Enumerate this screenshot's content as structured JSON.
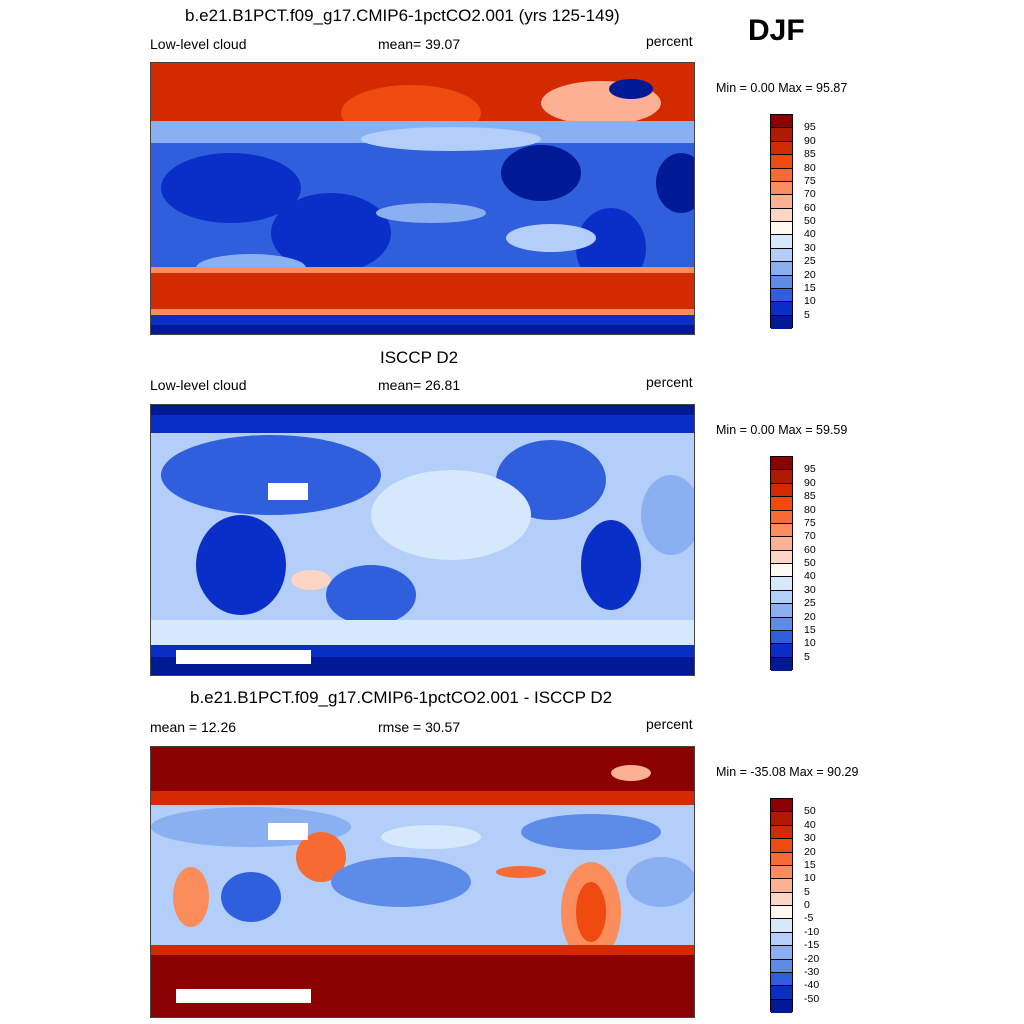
{
  "season": "DJF",
  "panels": [
    {
      "title": "b.e21.B1PCT.f09_g17.CMIP6-1pctCO2.001 (yrs 125-149)",
      "left_text": "Low-level cloud",
      "center_text": "mean=  39.07",
      "right_text": "percent",
      "minmax_text": "Min =   0.00 Max =  95.87",
      "colorbar": {
        "labels": [
          "95",
          "90",
          "85",
          "80",
          "75",
          "70",
          "60",
          "50",
          "40",
          "30",
          "25",
          "20",
          "15",
          "10",
          "5"
        ],
        "colors": [
          "#8b0000",
          "#b01a00",
          "#d42a00",
          "#ef4a10",
          "#f86a34",
          "#fb8c5c",
          "#fcb194",
          "#fdd5c3",
          "#fff8f0",
          "#d6e8fc",
          "#b3cef8",
          "#8ab0f2",
          "#5c8be8",
          "#2f5fdc",
          "#0a2fc8",
          "#001a96"
        ]
      },
      "map_type": "model"
    },
    {
      "title": "ISCCP D2",
      "left_text": "Low-level cloud",
      "center_text": "mean=  26.81",
      "right_text": "percent",
      "minmax_text": "Min =   0.00 Max =  59.59",
      "colorbar": {
        "labels": [
          "95",
          "90",
          "85",
          "80",
          "75",
          "70",
          "60",
          "50",
          "40",
          "30",
          "25",
          "20",
          "15",
          "10",
          "5"
        ],
        "colors": [
          "#8b0000",
          "#b01a00",
          "#d42a00",
          "#ef4a10",
          "#f86a34",
          "#fb8c5c",
          "#fcb194",
          "#fdd5c3",
          "#fff8f0",
          "#d6e8fc",
          "#b3cef8",
          "#8ab0f2",
          "#5c8be8",
          "#2f5fdc",
          "#0a2fc8",
          "#001a96"
        ]
      },
      "map_type": "obs"
    },
    {
      "title": "b.e21.B1PCT.f09_g17.CMIP6-1pctCO2.001 - ISCCP D2",
      "left_text": "mean =  12.26",
      "center_text": "rmse =  30.57",
      "right_text": "percent",
      "minmax_text": "Min = -35.08 Max =  90.29",
      "colorbar": {
        "labels": [
          "50",
          "40",
          "30",
          "20",
          "15",
          "10",
          "5",
          "0",
          "-5",
          "-10",
          "-15",
          "-20",
          "-30",
          "-40",
          "-50"
        ],
        "colors": [
          "#8b0000",
          "#b01a00",
          "#d42a00",
          "#ef4a10",
          "#f86a34",
          "#fb8c5c",
          "#fcb194",
          "#fdd5c3",
          "#fff8f0",
          "#d6e8fc",
          "#b3cef8",
          "#8ab0f2",
          "#5c8be8",
          "#2f5fdc",
          "#0a2fc8",
          "#001a96"
        ]
      },
      "map_type": "diff"
    }
  ],
  "chart_data": [
    {
      "type": "heatmap",
      "title": "b.e21.B1PCT.f09_g17.CMIP6-1pctCO2.001 (yrs 125-149)",
      "variable": "Low-level cloud",
      "units": "percent",
      "mean": 39.07,
      "min": 0.0,
      "max": 95.87,
      "contour_levels": [
        5,
        10,
        15,
        20,
        25,
        30,
        40,
        50,
        60,
        70,
        75,
        80,
        85,
        90,
        95
      ]
    },
    {
      "type": "heatmap",
      "title": "ISCCP D2",
      "variable": "Low-level cloud",
      "units": "percent",
      "mean": 26.81,
      "min": 0.0,
      "max": 59.59,
      "contour_levels": [
        5,
        10,
        15,
        20,
        25,
        30,
        40,
        50,
        60,
        70,
        75,
        80,
        85,
        90,
        95
      ]
    },
    {
      "type": "heatmap",
      "title": "b.e21.B1PCT.f09_g17.CMIP6-1pctCO2.001 - ISCCP D2",
      "units": "percent",
      "mean": 12.26,
      "rmse": 30.57,
      "min": -35.08,
      "max": 90.29,
      "contour_levels": [
        -50,
        -40,
        -30,
        -20,
        -15,
        -10,
        -5,
        0,
        5,
        10,
        15,
        20,
        30,
        40,
        50
      ]
    }
  ]
}
